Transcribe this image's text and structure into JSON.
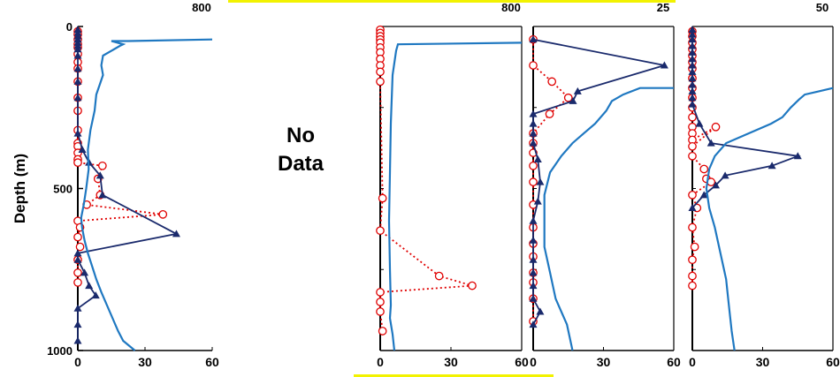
{
  "y_axis": {
    "label": "Depth (m)",
    "ticks": [
      0,
      500,
      1000
    ]
  },
  "no_data_lines": [
    "No",
    "Data"
  ],
  "colors": {
    "profile": "#1f78c1",
    "triangle_series": "#1a2a6c",
    "circle_series": "#e00000",
    "highlight": "#f2f200"
  },
  "chart_data": [
    {
      "type": "line",
      "panel": 1,
      "ylim": [
        1000,
        0
      ],
      "bottom_axis": {
        "range": [
          0,
          60
        ],
        "ticks": [
          "0",
          "30",
          "60"
        ]
      },
      "top_axis": {
        "range": [
          0,
          800
        ],
        "ticks": [
          "800"
        ]
      },
      "series": [
        {
          "marker": "circle",
          "axis": "bottom",
          "x": [
            0,
            0,
            0,
            0,
            0,
            0,
            0,
            0,
            0,
            0,
            0,
            0,
            0,
            0,
            0,
            0,
            0,
            11,
            9,
            10,
            4,
            38,
            0,
            1,
            0,
            1,
            0,
            0,
            0
          ],
          "y": [
            15,
            25,
            40,
            55,
            65,
            85,
            110,
            130,
            170,
            220,
            260,
            320,
            360,
            370,
            390,
            410,
            420,
            430,
            470,
            520,
            550,
            580,
            600,
            620,
            650,
            680,
            720,
            760,
            790
          ]
        },
        {
          "marker": "triangle",
          "axis": "bottom",
          "x": [
            0,
            0,
            0,
            0,
            0,
            0,
            0,
            0,
            0,
            0,
            0,
            0,
            2,
            5,
            10,
            11,
            44,
            0,
            0,
            3,
            5,
            8,
            0,
            0,
            0
          ],
          "y": [
            10,
            20,
            30,
            40,
            50,
            60,
            70,
            90,
            130,
            170,
            220,
            330,
            380,
            420,
            460,
            520,
            640,
            700,
            720,
            760,
            800,
            830,
            870,
            920,
            970
          ]
        },
        {
          "marker": "none",
          "axis": "top",
          "x": [
            800,
            300,
            200,
            270,
            250,
            150,
            140,
            150,
            130,
            110,
            100,
            75,
            60,
            65,
            50,
            35,
            20,
            25,
            40,
            60,
            85,
            110,
            140,
            190,
            240,
            270,
            340
          ],
          "y": [
            40,
            45,
            45,
            55,
            60,
            90,
            120,
            150,
            180,
            210,
            260,
            320,
            380,
            440,
            500,
            550,
            590,
            620,
            660,
            700,
            740,
            780,
            820,
            880,
            940,
            970,
            1000
          ]
        }
      ]
    },
    {
      "type": "line",
      "panel": 2,
      "ylim": [
        1000,
        0
      ],
      "bottom_axis": {
        "range": [
          0,
          60
        ],
        "ticks": [
          "0",
          "30",
          "60"
        ]
      },
      "top_axis": {
        "range": [
          0,
          800
        ],
        "ticks": [
          "800"
        ]
      },
      "series": [
        {
          "marker": "circle",
          "axis": "bottom",
          "x": [
            0,
            0,
            0,
            0,
            0,
            0,
            0,
            0,
            0,
            0,
            0,
            1,
            0,
            25,
            39,
            0,
            0,
            0,
            1
          ],
          "y": [
            10,
            20,
            30,
            40,
            50,
            65,
            80,
            100,
            120,
            140,
            170,
            530,
            630,
            770,
            800,
            820,
            850,
            880,
            940
          ]
        },
        {
          "marker": "none",
          "axis": "top",
          "x": [
            800,
            100,
            90,
            70,
            60,
            55,
            50,
            55,
            60,
            55,
            70,
            80
          ],
          "y": [
            50,
            55,
            75,
            150,
            300,
            450,
            600,
            750,
            860,
            900,
            950,
            1000
          ]
        }
      ]
    },
    {
      "type": "line",
      "panel": 3,
      "ylim": [
        1000,
        0
      ],
      "bottom_axis": {
        "range": [
          0,
          60
        ],
        "ticks": [
          "0",
          "30",
          "60"
        ]
      },
      "top_axis": {
        "range": [
          0,
          25
        ],
        "ticks": [
          "25"
        ]
      },
      "series": [
        {
          "marker": "circle",
          "axis": "bottom",
          "x": [
            0,
            0,
            8,
            15,
            7,
            0,
            0,
            0,
            0,
            0,
            0,
            0,
            0,
            0,
            0,
            0,
            0,
            0
          ],
          "y": [
            40,
            120,
            170,
            220,
            270,
            330,
            360,
            390,
            430,
            480,
            550,
            620,
            670,
            710,
            760,
            790,
            840,
            910
          ]
        },
        {
          "marker": "triangle",
          "axis": "bottom",
          "x": [
            0,
            56,
            19,
            17,
            0,
            0,
            0,
            0,
            2,
            3,
            2,
            0,
            0,
            0,
            0,
            0,
            0,
            3,
            0
          ],
          "y": [
            40,
            120,
            200,
            230,
            270,
            300,
            330,
            360,
            410,
            480,
            540,
            600,
            660,
            720,
            760,
            800,
            840,
            880,
            920
          ]
        },
        {
          "marker": "none",
          "axis": "top",
          "x": [
            25,
            19,
            16,
            14,
            13,
            11,
            9,
            7,
            5,
            3,
            2,
            2,
            2,
            3,
            4,
            6,
            7
          ],
          "y": [
            190,
            190,
            210,
            230,
            260,
            300,
            330,
            360,
            400,
            450,
            520,
            600,
            680,
            760,
            840,
            920,
            1000
          ]
        }
      ]
    },
    {
      "type": "line",
      "panel": 4,
      "ylim": [
        1000,
        0
      ],
      "bottom_axis": {
        "range": [
          0,
          60
        ],
        "ticks": [
          "0",
          "30",
          "60"
        ]
      },
      "top_axis": {
        "range": [
          0,
          50
        ],
        "ticks": [
          "50"
        ]
      },
      "series": [
        {
          "marker": "circle",
          "axis": "bottom",
          "x": [
            0,
            0,
            0,
            0,
            0,
            0,
            0,
            0,
            0,
            0,
            0,
            0,
            0,
            0,
            0,
            10,
            0,
            0,
            5,
            6,
            8,
            0,
            2,
            0,
            1,
            0,
            0,
            0
          ],
          "y": [
            15,
            30,
            50,
            70,
            90,
            110,
            130,
            160,
            190,
            220,
            250,
            280,
            310,
            330,
            350,
            310,
            370,
            400,
            440,
            470,
            480,
            520,
            560,
            620,
            680,
            720,
            770,
            800
          ]
        },
        {
          "marker": "triangle",
          "axis": "bottom",
          "x": [
            0,
            0,
            0,
            0,
            0,
            0,
            0,
            0,
            0,
            0,
            0,
            0,
            0,
            3,
            8,
            45,
            34,
            14,
            10,
            5,
            0
          ],
          "y": [
            10,
            25,
            40,
            60,
            80,
            100,
            120,
            140,
            160,
            180,
            200,
            220,
            240,
            300,
            360,
            400,
            430,
            460,
            490,
            520,
            560
          ]
        },
        {
          "marker": "none",
          "axis": "top",
          "x": [
            50,
            45,
            40,
            38,
            35,
            32,
            28,
            20,
            12,
            8,
            6,
            5,
            6,
            8,
            10,
            12,
            13,
            14,
            15
          ],
          "y": [
            190,
            200,
            210,
            225,
            250,
            280,
            300,
            330,
            360,
            400,
            440,
            500,
            560,
            620,
            700,
            780,
            860,
            940,
            1000
          ]
        }
      ]
    }
  ]
}
